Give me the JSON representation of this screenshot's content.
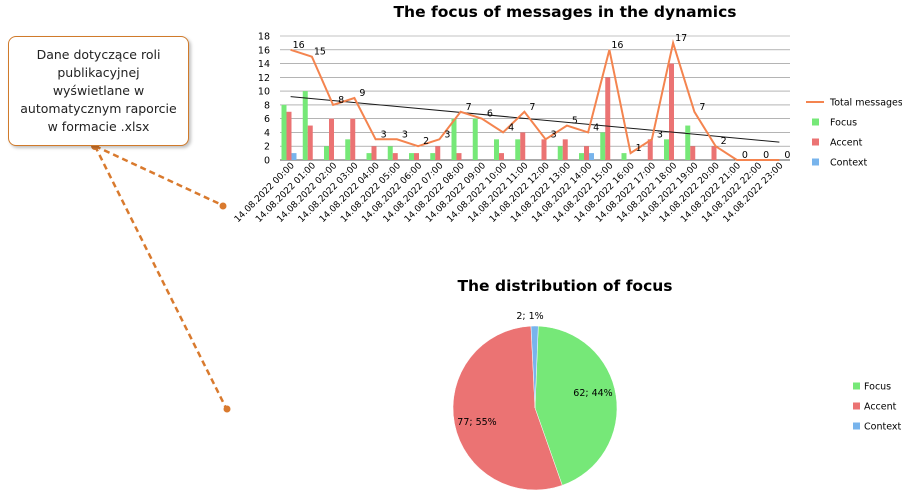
{
  "callout": {
    "text": "Dane dotyczące roli publikacyjnej wyświetlane w automatycznym raporcie w formacie .xlsx"
  },
  "colors": {
    "total": "#f4844f",
    "focus": "#76e878",
    "accent": "#eb7373",
    "context": "#78b4ec",
    "trend": "#1a1a1a",
    "arrow": "#d97a2e",
    "grid": "#888888"
  },
  "chart_data": [
    {
      "type": "bar",
      "title": "The focus of messages in the dynamics",
      "categories": [
        "14.08.2022 00:00",
        "14.08.2022 01:00",
        "14.08.2022 02:00",
        "14.08.2022 03:00",
        "14.08.2022 04:00",
        "14.08.2022 05:00",
        "14.08.2022 06:00",
        "14.08.2022 07:00",
        "14.08.2022 08:00",
        "14.08.2022 09:00",
        "14.08.2022 10:00",
        "14.08.2022 11:00",
        "14.08.2022 12:00",
        "14.08.2022 13:00",
        "14.08.2022 14:00",
        "14.08.2022 15:00",
        "14.08.2022 16:00",
        "14.08.2022 17:00",
        "14.08.2022 18:00",
        "14.08.2022 19:00",
        "14.08.2022 20:00",
        "14.08.2022 21:00",
        "14.08.2022 22:00",
        "14.08.2022 23:00"
      ],
      "series": [
        {
          "name": "Total messages",
          "kind": "line",
          "values": [
            16,
            15,
            8,
            9,
            3,
            3,
            2,
            3,
            7,
            6,
            4,
            7,
            3,
            5,
            4,
            16,
            1,
            3,
            17,
            7,
            2,
            0,
            0,
            0
          ]
        },
        {
          "name": "Focus",
          "kind": "bar",
          "values": [
            8,
            10,
            2,
            3,
            1,
            2,
            1,
            1,
            6,
            6,
            3,
            3,
            0,
            2,
            1,
            4,
            1,
            0,
            3,
            5,
            0,
            0,
            0,
            0
          ]
        },
        {
          "name": "Accent",
          "kind": "bar",
          "values": [
            7,
            5,
            6,
            6,
            2,
            1,
            1,
            2,
            1,
            0,
            1,
            4,
            3,
            3,
            2,
            12,
            0,
            3,
            14,
            2,
            2,
            0,
            0,
            0
          ]
        },
        {
          "name": "Context",
          "kind": "bar",
          "values": [
            1,
            0,
            0,
            0,
            0,
            0,
            0,
            0,
            0,
            0,
            0,
            0,
            0,
            0,
            1,
            0,
            0,
            0,
            0,
            0,
            0,
            0,
            0,
            0
          ]
        }
      ],
      "trendline": {
        "start": 9.2,
        "end": 2.6
      },
      "ylim": [
        0,
        18
      ],
      "yticks": [
        0,
        2,
        4,
        6,
        8,
        10,
        12,
        14,
        16,
        18
      ],
      "grid": true,
      "legend": "right"
    },
    {
      "type": "pie",
      "title": "The distribution of focus",
      "slices": [
        {
          "name": "Focus",
          "value": 62,
          "label": "62; 44%"
        },
        {
          "name": "Accent",
          "value": 77,
          "label": "77; 55%"
        },
        {
          "name": "Context",
          "value": 2,
          "label": "2; 1%"
        }
      ],
      "legend": "right"
    }
  ]
}
